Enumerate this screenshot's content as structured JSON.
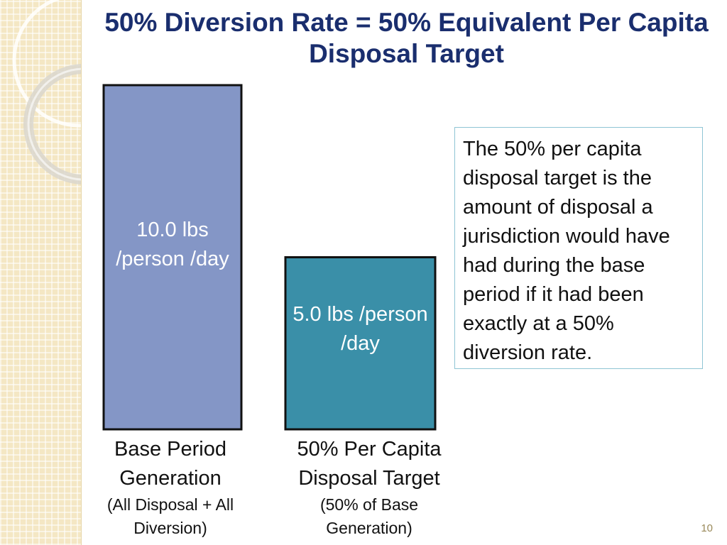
{
  "slide": {
    "title": "50% Diversion Rate =  50% Equivalent Per Capita Disposal Target",
    "note": "The 50% per capita disposal target is the amount of disposal a jurisdiction would have had during the base period if it had been exactly at a 50% diversion rate.",
    "page_number": "10",
    "colors": {
      "title": "#1a2e6e",
      "background_band": "#f4e7c4",
      "note_border": "#8fc5d4"
    }
  },
  "chart_data": {
    "type": "bar",
    "unit": "lbs/person/day",
    "categories": [
      {
        "label": "Base Period Generation",
        "sublabel": "(All Disposal + All Diversion)"
      },
      {
        "label": "50% Per Capita Disposal Target",
        "sublabel": "(50% of Base Generation)"
      }
    ],
    "values": [
      10.0,
      5.0
    ],
    "data_labels": [
      "10.0 lbs /person /day",
      "5.0 lbs /person /day"
    ],
    "bar_colors": [
      "#8496c6",
      "#3a8fa8"
    ],
    "ylim": [
      0,
      10.0
    ]
  }
}
